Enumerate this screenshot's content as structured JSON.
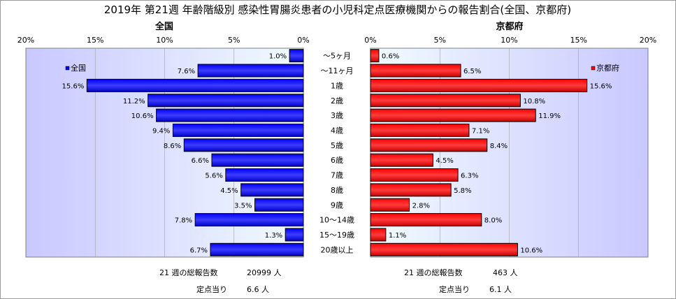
{
  "chart_data": {
    "type": "bar",
    "title": "2019年 第21週 年齢階級別 感染性胃腸炎患者の小児科定点医療機関からの報告割合(全国、京都府)",
    "categories": [
      "～5ヶ月",
      "～11ヶ月",
      "1歳",
      "2歳",
      "3歳",
      "4歳",
      "5歳",
      "6歳",
      "7歳",
      "8歳",
      "9歳",
      "10～14歳",
      "15～19歳",
      "20歳以上"
    ],
    "ticks": [
      "20%",
      "15%",
      "10%",
      "5%",
      "0%"
    ],
    "ticks_right": [
      "0%",
      "5%",
      "10%",
      "15%",
      "20%"
    ],
    "xlim": [
      0,
      20
    ],
    "orientation": "horizontal-butterfly",
    "grid": true,
    "series": [
      {
        "name": "全国",
        "panel_title": "全国",
        "color": "#0000FF",
        "values": [
          1.0,
          7.6,
          15.6,
          11.2,
          10.6,
          9.4,
          8.6,
          6.6,
          5.6,
          4.5,
          3.5,
          7.8,
          1.3,
          6.7
        ],
        "labels": [
          "1.0%",
          "7.6%",
          "15.6%",
          "11.2%",
          "10.6%",
          "9.4%",
          "8.6%",
          "6.6%",
          "5.6%",
          "4.5%",
          "3.5%",
          "7.8%",
          "1.3%",
          "6.7%"
        ],
        "legend_placement": "top-left",
        "footer": {
          "total_label": "21 週の総報告数",
          "total_value": "20999 人",
          "per_site_label": "定点当り",
          "per_site_value": "6.6 人"
        }
      },
      {
        "name": "京都府",
        "panel_title": "京都府",
        "color": "#FF0000",
        "values": [
          0.6,
          6.5,
          15.6,
          10.8,
          11.9,
          7.1,
          8.4,
          4.5,
          6.3,
          5.8,
          2.8,
          8.0,
          1.1,
          10.6
        ],
        "labels": [
          "0.6%",
          "6.5%",
          "15.6%",
          "10.8%",
          "11.9%",
          "7.1%",
          "8.4%",
          "4.5%",
          "6.3%",
          "5.8%",
          "2.8%",
          "8.0%",
          "1.1%",
          "10.6%"
        ],
        "legend_placement": "top-right",
        "footer": {
          "total_label": "21 週の総報告数",
          "total_value": "463 人",
          "per_site_label": "定点当り",
          "per_site_value": "6.1 人"
        }
      }
    ]
  }
}
